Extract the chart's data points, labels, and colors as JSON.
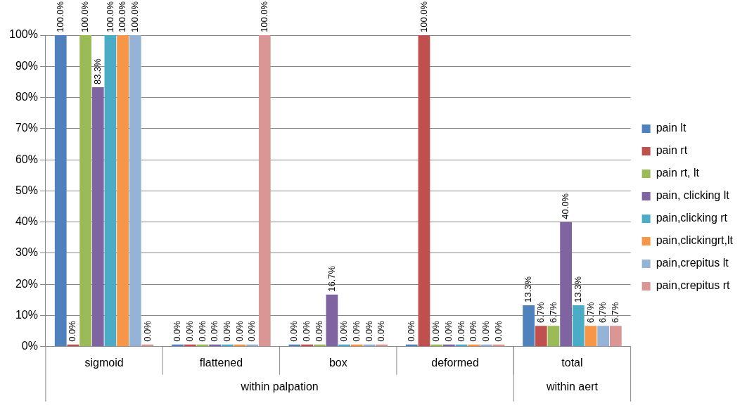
{
  "chart_data": {
    "type": "bar",
    "categories": [
      "sigmoid",
      "flattened",
      "box",
      "deformed",
      "total"
    ],
    "series": [
      {
        "name": "pain lt",
        "color": "#4f81bd",
        "values": [
          100,
          0,
          0,
          0,
          13.3
        ],
        "value_labels": [
          "100.0%",
          "0.0%",
          "0.0%",
          "0.0%",
          "13.3%"
        ]
      },
      {
        "name": "pain rt",
        "color": "#c0504d",
        "values": [
          0,
          0,
          0,
          100,
          6.7
        ],
        "value_labels": [
          "0.0%",
          "0.0%",
          "0.0%",
          "100.0%",
          "6.7%"
        ]
      },
      {
        "name": "pain rt, lt",
        "color": "#9bbb59",
        "values": [
          100,
          0,
          0,
          0,
          6.7
        ],
        "value_labels": [
          "100.0%",
          "0.0%",
          "0.0%",
          "0.0%",
          "6.7%"
        ]
      },
      {
        "name": "pain, clicking lt",
        "color": "#8064a2",
        "values": [
          83.3,
          0,
          16.7,
          0,
          40
        ],
        "value_labels": [
          "83.3%",
          "0.0%",
          "16.7%",
          "0.0%",
          "40.0%"
        ]
      },
      {
        "name": "pain,clicking rt",
        "color": "#4bacc6",
        "values": [
          100,
          0,
          0,
          0,
          13.3
        ],
        "value_labels": [
          "100.0%",
          "0.0%",
          "0.0%",
          "0.0%",
          "13.3%"
        ]
      },
      {
        "name": "pain,clickingrt,lt",
        "color": "#f79646",
        "values": [
          100,
          0,
          0,
          0,
          6.7
        ],
        "value_labels": [
          "100.0%",
          "0.0%",
          "0.0%",
          "0.0%",
          "6.7%"
        ]
      },
      {
        "name": "pain,crepitus lt",
        "color": "#95b3d7",
        "values": [
          100,
          0,
          0,
          0,
          6.7
        ],
        "value_labels": [
          "100.0%",
          "0.0%",
          "0.0%",
          "0.0%",
          "6.7%"
        ]
      },
      {
        "name": "pain,crepitus rt",
        "color": "#d99694",
        "values": [
          0,
          100,
          0,
          0,
          6.7
        ],
        "value_labels": [
          "0.0%",
          "100.0%",
          "0.0%",
          "0.0%",
          "6.7%"
        ]
      }
    ],
    "ylim": [
      0,
      100
    ],
    "yticks": [
      {
        "value": 0,
        "label": "0%"
      },
      {
        "value": 10,
        "label": "10%"
      },
      {
        "value": 20,
        "label": "20%"
      },
      {
        "value": 30,
        "label": "30%"
      },
      {
        "value": 40,
        "label": "40%"
      },
      {
        "value": 50,
        "label": "50%"
      },
      {
        "value": 60,
        "label": "60%"
      },
      {
        "value": 70,
        "label": "70%"
      },
      {
        "value": 80,
        "label": "80%"
      },
      {
        "value": 90,
        "label": "90%"
      },
      {
        "value": 100,
        "label": "100%"
      }
    ],
    "annotations": [
      "within palpation",
      "within aert"
    ],
    "grid": "y",
    "legend": "right"
  }
}
